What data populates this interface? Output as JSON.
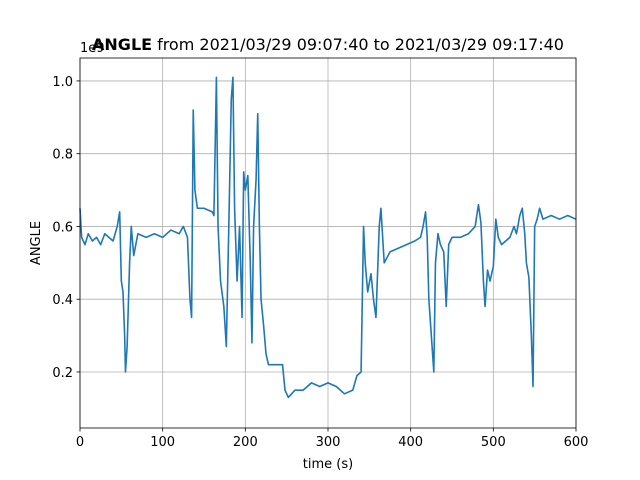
{
  "chart_data": {
    "type": "line",
    "title_name": "ANGLE",
    "title": "from 2021/03/29 09:07:40 to 2021/03/29 09:17:40",
    "offset_label": "1e9",
    "x_label": "time (s)",
    "y_label": "ANGLE",
    "xlim": [
      0,
      600
    ],
    "xticks": [
      0,
      100,
      200,
      300,
      400,
      500,
      600
    ],
    "ylim": [
      0.046,
      1.063
    ],
    "yticks": [
      0.2,
      0.4,
      0.6,
      0.8,
      {
        "value": 1,
        "label": "1.0"
      }
    ],
    "grid": true,
    "series": [
      {
        "name": "ANGLE",
        "color": "#1f77b4",
        "x": [
          0,
          2,
          6,
          10,
          15,
          20,
          25,
          30,
          35,
          40,
          45,
          48,
          50,
          52,
          54,
          55,
          57,
          60,
          62,
          65,
          70,
          80,
          90,
          100,
          110,
          120,
          125,
          130,
          133,
          135,
          137,
          139,
          142,
          150,
          160,
          162,
          165,
          167,
          170,
          174,
          177,
          180,
          183,
          185,
          187,
          190,
          193,
          196,
          198,
          200,
          203,
          206,
          208,
          210,
          213,
          215,
          217,
          219,
          222,
          225,
          228,
          235,
          245,
          248,
          252,
          260,
          270,
          280,
          290,
          300,
          310,
          320,
          330,
          335,
          340,
          343,
          345,
          348,
          352,
          355,
          358,
          362,
          364,
          368,
          375,
          385,
          395,
          405,
          412,
          415,
          418,
          420,
          422,
          425,
          428,
          430,
          433,
          436,
          440,
          443,
          446,
          450,
          460,
          470,
          478,
          482,
          485,
          488,
          490,
          493,
          496,
          500,
          503,
          506,
          510,
          520,
          525,
          528,
          532,
          535,
          538,
          540,
          543,
          546,
          548,
          550,
          553,
          556,
          560,
          570,
          580,
          590,
          600
        ],
        "values": [
          0.65,
          0.57,
          0.55,
          0.58,
          0.56,
          0.57,
          0.55,
          0.58,
          0.57,
          0.56,
          0.6,
          0.64,
          0.45,
          0.42,
          0.3,
          0.2,
          0.27,
          0.5,
          0.6,
          0.52,
          0.58,
          0.57,
          0.58,
          0.57,
          0.59,
          0.58,
          0.6,
          0.57,
          0.4,
          0.35,
          0.92,
          0.7,
          0.65,
          0.65,
          0.64,
          0.63,
          1.01,
          0.6,
          0.45,
          0.38,
          0.27,
          0.6,
          0.95,
          1.01,
          0.65,
          0.45,
          0.6,
          0.35,
          0.75,
          0.7,
          0.74,
          0.5,
          0.28,
          0.6,
          0.73,
          0.91,
          0.6,
          0.4,
          0.33,
          0.25,
          0.22,
          0.22,
          0.22,
          0.15,
          0.13,
          0.15,
          0.15,
          0.17,
          0.16,
          0.17,
          0.16,
          0.14,
          0.15,
          0.19,
          0.2,
          0.6,
          0.5,
          0.42,
          0.47,
          0.4,
          0.35,
          0.6,
          0.65,
          0.5,
          0.53,
          0.54,
          0.55,
          0.56,
          0.57,
          0.6,
          0.64,
          0.57,
          0.4,
          0.3,
          0.2,
          0.5,
          0.58,
          0.55,
          0.53,
          0.38,
          0.55,
          0.57,
          0.57,
          0.58,
          0.6,
          0.66,
          0.61,
          0.45,
          0.38,
          0.48,
          0.45,
          0.49,
          0.62,
          0.57,
          0.55,
          0.57,
          0.6,
          0.58,
          0.63,
          0.65,
          0.58,
          0.5,
          0.46,
          0.3,
          0.16,
          0.6,
          0.62,
          0.65,
          0.62,
          0.63,
          0.62,
          0.63,
          0.62
        ]
      }
    ]
  }
}
